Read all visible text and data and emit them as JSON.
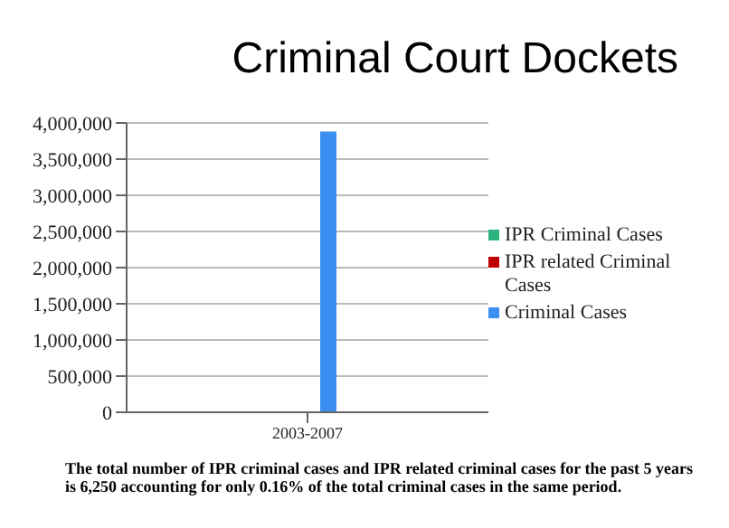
{
  "chart_data": {
    "type": "bar",
    "title": "Criminal Court Dockets",
    "categories": [
      "2003-2007"
    ],
    "series": [
      {
        "name": "IPR Criminal Cases",
        "color": "#2db37d",
        "values": [
          3000
        ]
      },
      {
        "name": "IPR related Criminal Cases",
        "color": "#c00000",
        "values": [
          3250
        ]
      },
      {
        "name": "Criminal Cases",
        "color": "#3b8ff0",
        "values": [
          3880000
        ]
      }
    ],
    "ylim": [
      0,
      4000000
    ],
    "yticks": [
      0,
      {
        "value": 500000,
        "label": "500,000"
      },
      {
        "value": 1000000,
        "label": "1,000,000"
      },
      {
        "value": 1500000,
        "label": "1,500,000"
      },
      {
        "value": 2000000,
        "label": "2,000,000"
      },
      {
        "value": 2500000,
        "label": "2,500,000"
      },
      {
        "value": 3000000,
        "label": "3,000,000"
      },
      {
        "value": 3500000,
        "label": "3,500,000"
      },
      {
        "value": 4000000,
        "label": "4,000,000"
      }
    ],
    "grid": "y",
    "legend": "right",
    "annotations": [
      "The total number of IPR criminal cases and IPR related criminal cases for the past 5 years is 6,250 accounting for only 0.16% of the total criminal cases in the same period."
    ]
  }
}
